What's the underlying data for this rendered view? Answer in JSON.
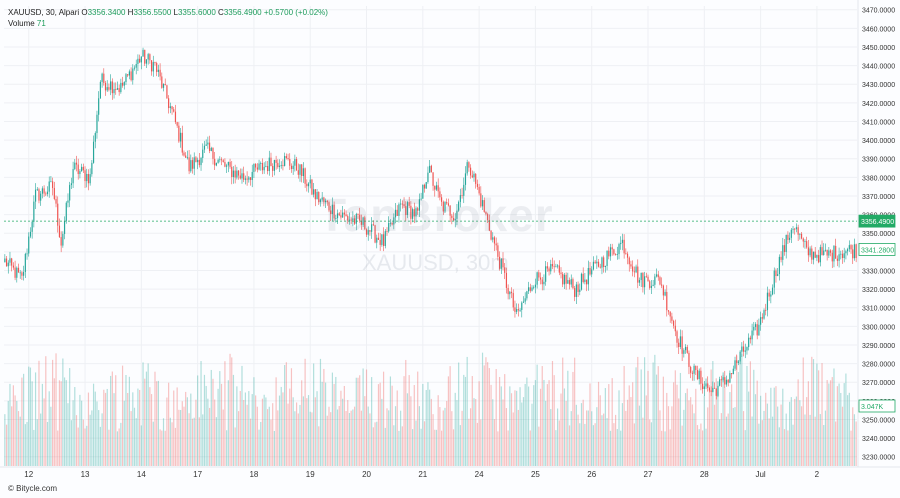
{
  "header": {
    "symbol": "XAUUSD, 30, Alpari",
    "o_label": "O",
    "o_value": "3356.3400",
    "h_label": "H",
    "h_value": "3356.5500",
    "l_label": "L",
    "l_value": "3355.6000",
    "c_label": "C",
    "c_value": "3356.4900",
    "change": "+0.5700 (+0.02%)",
    "volume_label": "Volume",
    "volume_value": "71"
  },
  "watermark": {
    "brand": "TanBroker",
    "symbol": "XAUUSD, 30m"
  },
  "credit": "© Bitycle.com",
  "colors": {
    "up": "#26a69a",
    "down": "#ef5350",
    "grid": "#eef0f4",
    "price_line": "#22aa66"
  },
  "chart_data": {
    "type": "candlestick",
    "ylim": [
      3225,
      3472
    ],
    "y_ticks": [
      3470,
      3460,
      3450,
      3440,
      3430,
      3420,
      3410,
      3400,
      3390,
      3380,
      3370,
      3360,
      3350,
      3340,
      3330,
      3320,
      3310,
      3300,
      3290,
      3280,
      3270,
      3260,
      3250,
      3240,
      3230
    ],
    "y_tick_labels": [
      "3470.0000",
      "3460.0000",
      "3450.0000",
      "3440.0000",
      "3430.0000",
      "3420.0000",
      "3410.0000",
      "3400.0000",
      "3390.0000",
      "3380.0000",
      "3370.0000",
      "3360.0000",
      "3350.0000",
      "3340.0000",
      "3330.0000",
      "3320.0000",
      "3310.0000",
      "3300.0000",
      "3290.0000",
      "3280.0000",
      "3270.0000",
      "3260.0000",
      "3250.0000",
      "3240.0000",
      "3230.0000"
    ],
    "x_tick_labels": [
      "12",
      "13",
      "14",
      "17",
      "18",
      "19",
      "20",
      "21",
      "24",
      "25",
      "26",
      "27",
      "28",
      "Jul",
      "2"
    ],
    "x_tick_index": [
      14,
      47,
      80,
      113,
      146,
      179,
      212,
      245,
      278,
      311,
      344,
      377,
      410,
      443,
      476
    ],
    "current_price": 3356.49,
    "current_price_label": "3356.4900",
    "secondary_price": 3341.28,
    "secondary_price_label": "3341.2800",
    "volume_label": "3.047K",
    "key_points": [
      [
        0,
        3335
      ],
      [
        10,
        3325
      ],
      [
        18,
        3370
      ],
      [
        28,
        3375
      ],
      [
        33,
        3345
      ],
      [
        40,
        3385
      ],
      [
        50,
        3380
      ],
      [
        56,
        3432
      ],
      [
        68,
        3428
      ],
      [
        80,
        3445
      ],
      [
        88,
        3440
      ],
      [
        98,
        3415
      ],
      [
        108,
        3385
      ],
      [
        118,
        3395
      ],
      [
        130,
        3385
      ],
      [
        140,
        3380
      ],
      [
        150,
        3385
      ],
      [
        162,
        3390
      ],
      [
        172,
        3385
      ],
      [
        182,
        3370
      ],
      [
        196,
        3360
      ],
      [
        210,
        3355
      ],
      [
        222,
        3345
      ],
      [
        232,
        3365
      ],
      [
        242,
        3360
      ],
      [
        248,
        3385
      ],
      [
        256,
        3365
      ],
      [
        264,
        3360
      ],
      [
        272,
        3388
      ],
      [
        280,
        3365
      ],
      [
        290,
        3335
      ],
      [
        300,
        3305
      ],
      [
        310,
        3325
      ],
      [
        322,
        3330
      ],
      [
        334,
        3320
      ],
      [
        350,
        3335
      ],
      [
        362,
        3345
      ],
      [
        372,
        3325
      ],
      [
        384,
        3325
      ],
      [
        394,
        3295
      ],
      [
        404,
        3275
      ],
      [
        414,
        3265
      ],
      [
        422,
        3270
      ],
      [
        432,
        3285
      ],
      [
        442,
        3300
      ],
      [
        452,
        3330
      ],
      [
        462,
        3355
      ],
      [
        470,
        3340
      ],
      [
        480,
        3338
      ],
      [
        495,
        3341
      ]
    ]
  }
}
